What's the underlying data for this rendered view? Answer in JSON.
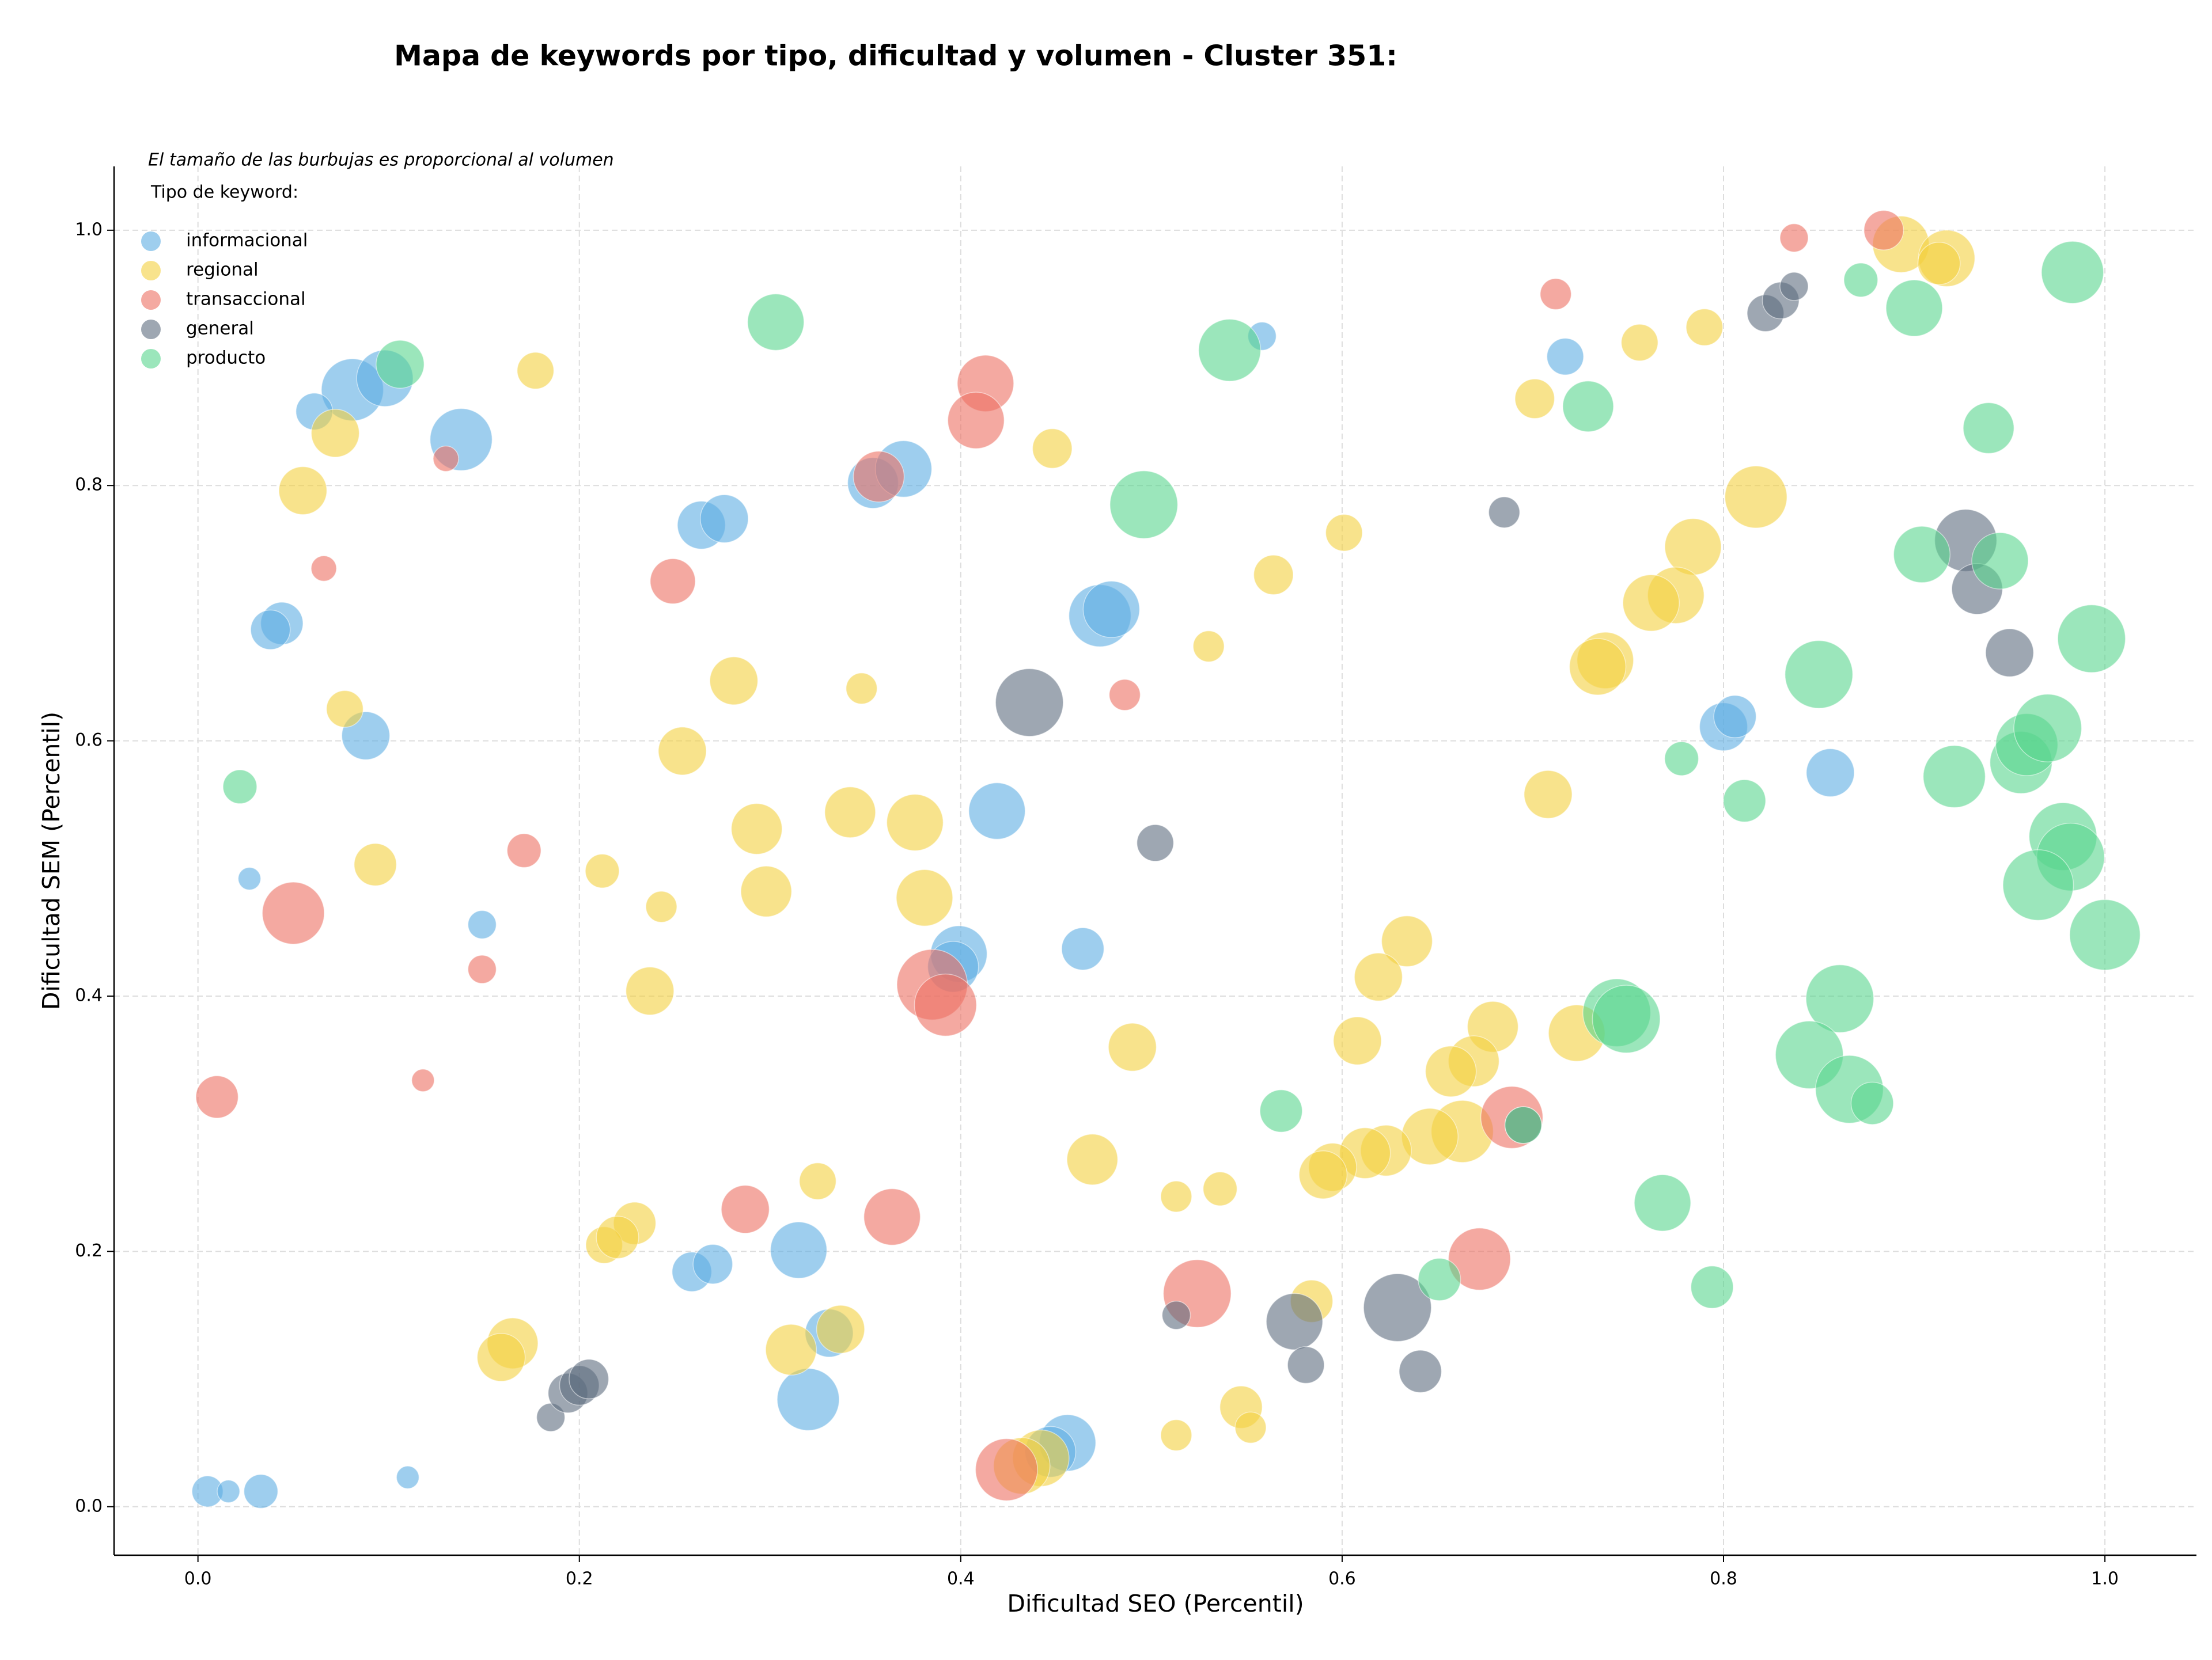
{
  "chart_data": {
    "type": "scatter",
    "title": "Mapa de keywords por tipo, dificultad y volumen - Cluster 351:",
    "note": "El tamaño de las burbujas es proporcional al volumen",
    "legend_title": "Tipo de keyword:",
    "legend": "upper left",
    "grid": true,
    "x_label": "Dificultad SEO (Percentil)",
    "y_label": "Dificultad SEM (Percentil)",
    "xlim": [
      -0.044,
      1.048
    ],
    "ylim": [
      -0.038,
      1.05
    ],
    "xticks": [
      {
        "value": 0,
        "label": "0.0"
      },
      {
        "value": 0.2,
        "label": "0.2"
      },
      {
        "value": 0.4,
        "label": "0.4"
      },
      {
        "value": 0.6,
        "label": "0.6"
      },
      {
        "value": 0.8,
        "label": "0.8"
      },
      {
        "value": 1,
        "label": "1.0"
      }
    ],
    "yticks": [
      {
        "value": 0,
        "label": "0.0"
      },
      {
        "value": 0.2,
        "label": "0.2"
      },
      {
        "value": 0.4,
        "label": "0.4"
      },
      {
        "value": 0.6,
        "label": "0.6"
      },
      {
        "value": 0.8,
        "label": "0.8"
      },
      {
        "value": 1,
        "label": "1.0"
      }
    ],
    "series": [
      {
        "name": "informacional",
        "color": "#5dade2",
        "x": [
          0.005,
          0.016,
          0.033,
          0.11,
          0.259,
          0.27,
          0.315,
          0.331,
          0.32,
          0.456,
          0.447,
          0.464,
          0.419,
          0.399,
          0.396,
          0.473,
          0.479,
          0.354,
          0.37,
          0.264,
          0.276,
          0.138,
          0.081,
          0.098,
          0.061,
          0.044,
          0.038,
          0.088,
          0.027,
          0.149,
          0.558,
          0.717,
          0.8,
          0.806,
          0.856
        ],
        "values": [
          0.012,
          0.012,
          0.012,
          0.023,
          0.184,
          0.19,
          0.201,
          0.136,
          0.084,
          0.05,
          0.043,
          0.437,
          0.545,
          0.433,
          0.423,
          0.698,
          0.703,
          0.802,
          0.813,
          0.769,
          0.774,
          0.836,
          0.875,
          0.884,
          0.858,
          0.692,
          0.687,
          0.604,
          0.492,
          0.456,
          0.917,
          0.901,
          0.611,
          0.619,
          0.575
        ],
        "sizes": [
          121,
          64,
          144,
          64,
          196,
          196,
          400,
          289,
          484,
          400,
          324,
          225,
          400,
          400,
          324,
          484,
          400,
          324,
          400,
          289,
          289,
          484,
          484,
          400,
          169,
          225,
          196,
          289,
          64,
          100,
          100,
          169,
          289,
          225,
          289
        ]
      },
      {
        "name": "regional",
        "color": "#f4d03f",
        "x": [
          0.177,
          0.072,
          0.055,
          0.077,
          0.093,
          0.254,
          0.281,
          0.293,
          0.298,
          0.342,
          0.376,
          0.381,
          0.348,
          0.243,
          0.212,
          0.237,
          0.448,
          0.601,
          0.564,
          0.53,
          0.708,
          0.701,
          0.756,
          0.79,
          0.817,
          0.784,
          0.775,
          0.762,
          0.738,
          0.734,
          0.893,
          0.917,
          0.913,
          0.634,
          0.619,
          0.608,
          0.679,
          0.669,
          0.657,
          0.723,
          0.663,
          0.646,
          0.623,
          0.612,
          0.595,
          0.59,
          0.49,
          0.469,
          0.513,
          0.536,
          0.584,
          0.547,
          0.552,
          0.513,
          0.442,
          0.432,
          0.325,
          0.337,
          0.311,
          0.229,
          0.213,
          0.22,
          0.165,
          0.159
        ],
        "values": [
          0.89,
          0.841,
          0.796,
          0.625,
          0.503,
          0.592,
          0.647,
          0.531,
          0.482,
          0.544,
          0.536,
          0.477,
          0.641,
          0.47,
          0.498,
          0.404,
          0.829,
          0.763,
          0.73,
          0.674,
          0.558,
          0.868,
          0.912,
          0.924,
          0.791,
          0.752,
          0.714,
          0.708,
          0.663,
          0.658,
          0.989,
          0.978,
          0.974,
          0.443,
          0.415,
          0.365,
          0.376,
          0.349,
          0.341,
          0.371,
          0.294,
          0.29,
          0.279,
          0.277,
          0.266,
          0.26,
          0.36,
          0.272,
          0.243,
          0.249,
          0.161,
          0.078,
          0.062,
          0.056,
          0.038,
          0.032,
          0.255,
          0.139,
          0.123,
          0.222,
          0.205,
          0.211,
          0.128,
          0.117
        ],
        "sizes": [
          169,
          289,
          289,
          169,
          225,
          289,
          289,
          324,
          324,
          324,
          400,
          400,
          121,
          121,
          144,
          289,
          196,
          169,
          196,
          121,
          289,
          196,
          169,
          169,
          484,
          400,
          400,
          400,
          400,
          400,
          400,
          400,
          225,
          324,
          289,
          289,
          324,
          324,
          324,
          400,
          484,
          400,
          324,
          324,
          289,
          289,
          289,
          324,
          121,
          144,
          225,
          225,
          121,
          121,
          400,
          400,
          169,
          289,
          324,
          225,
          169,
          225,
          324,
          289
        ]
      },
      {
        "name": "transaccional",
        "color": "#ec7063",
        "x": [
          0.01,
          0.05,
          0.066,
          0.13,
          0.118,
          0.149,
          0.171,
          0.249,
          0.287,
          0.364,
          0.357,
          0.413,
          0.408,
          0.385,
          0.392,
          0.486,
          0.524,
          0.672,
          0.689,
          0.712,
          0.837,
          0.884,
          0.424
        ],
        "values": [
          0.321,
          0.465,
          0.735,
          0.821,
          0.334,
          0.421,
          0.514,
          0.725,
          0.233,
          0.227,
          0.807,
          0.88,
          0.851,
          0.409,
          0.393,
          0.636,
          0.167,
          0.194,
          0.305,
          0.95,
          0.994,
          1.0,
          0.029
        ],
        "sizes": [
          225,
          484,
          81,
          81,
          64,
          100,
          144,
          256,
          289,
          400,
          324,
          400,
          400,
          625,
          484,
          121,
          576,
          484,
          484,
          121,
          100,
          196,
          484
        ]
      },
      {
        "name": "general",
        "color": "#5d6d7e",
        "x": [
          0.436,
          0.502,
          0.575,
          0.581,
          0.629,
          0.641,
          0.513,
          0.685,
          0.927,
          0.933,
          0.95,
          0.822,
          0.83,
          0.837,
          0.185,
          0.194,
          0.2,
          0.205,
          0.695
        ],
        "values": [
          0.63,
          0.52,
          0.145,
          0.111,
          0.156,
          0.106,
          0.15,
          0.779,
          0.757,
          0.719,
          0.669,
          0.935,
          0.945,
          0.956,
          0.07,
          0.089,
          0.095,
          0.1,
          0.299
        ],
        "sizes": [
          576,
          169,
          400,
          169,
          576,
          225,
          100,
          121,
          484,
          324,
          289,
          169,
          169,
          100,
          100,
          196,
          196,
          196,
          169
        ]
      },
      {
        "name": "producto",
        "color": "#58d68d",
        "x": [
          0.022,
          0.106,
          0.303,
          0.541,
          0.496,
          0.729,
          0.872,
          0.9,
          0.983,
          0.939,
          0.904,
          0.945,
          0.993,
          0.85,
          0.778,
          0.811,
          0.921,
          0.956,
          0.959,
          0.97,
          0.978,
          0.982,
          0.965,
          1.0,
          0.861,
          0.845,
          0.866,
          0.878,
          0.744,
          0.749,
          0.568,
          0.651,
          0.768,
          0.794,
          0.695
        ],
        "values": [
          0.564,
          0.895,
          0.928,
          0.906,
          0.785,
          0.862,
          0.961,
          0.939,
          0.967,
          0.845,
          0.746,
          0.741,
          0.68,
          0.652,
          0.586,
          0.553,
          0.572,
          0.583,
          0.597,
          0.61,
          0.525,
          0.509,
          0.487,
          0.448,
          0.398,
          0.354,
          0.327,
          0.316,
          0.387,
          0.382,
          0.31,
          0.178,
          0.238,
          0.172,
          0.299
        ],
        "sizes": [
          144,
          289,
          400,
          484,
          576,
          324,
          144,
          400,
          484,
          324,
          400,
          400,
          576,
          576,
          144,
          225,
          484,
          484,
          484,
          576,
          576,
          576,
          625,
          625,
          576,
          576,
          576,
          225,
          576,
          576,
          225,
          225,
          400,
          225,
          169
        ]
      }
    ]
  }
}
